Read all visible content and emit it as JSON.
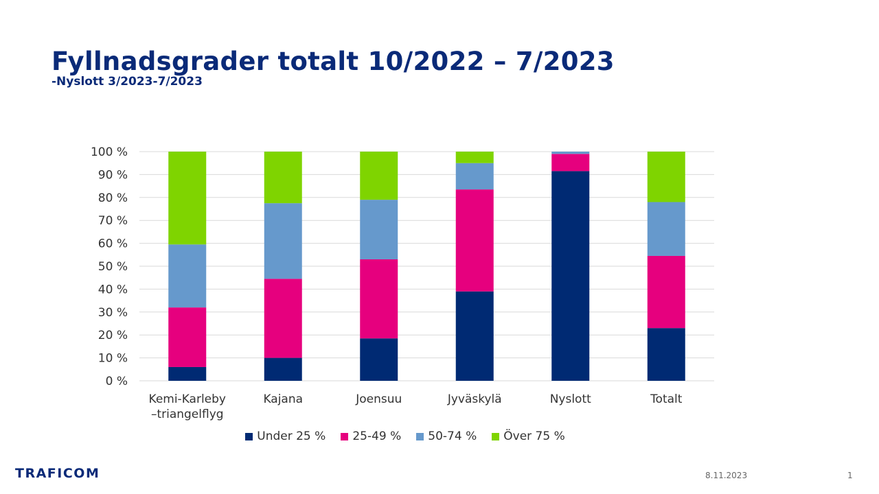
{
  "slide": {
    "title": "Fyllnadsgrader totalt 10/2022 – 7/2023",
    "subtitle": "-Nyslott 3/2023-7/2023",
    "logo": "TRAFICOM",
    "date": "8.11.2023",
    "page": "1"
  },
  "chart_data": {
    "type": "bar",
    "stacked": true,
    "percent": true,
    "categories": [
      "Kemi-Karleby\n–triangelflyg",
      "Kajana",
      "Joensuu",
      "Jyväskylä",
      "Nyslott",
      "Totalt"
    ],
    "series": [
      {
        "name": "Under 25 %",
        "color": "#002a73",
        "values": [
          6,
          10,
          18.5,
          39,
          91.5,
          23
        ]
      },
      {
        "name": "25-49 %",
        "color": "#e6007e",
        "values": [
          26,
          34.5,
          34.5,
          44.5,
          7.5,
          31.5
        ]
      },
      {
        "name": "50-74 %",
        "color": "#6699cc",
        "values": [
          27.5,
          33,
          26,
          11.5,
          1,
          23.5
        ]
      },
      {
        "name": "Över 75 %",
        "color": "#7fd400",
        "values": [
          40.5,
          22.5,
          21,
          5,
          0,
          22
        ]
      }
    ],
    "ylim": [
      0,
      100
    ],
    "yticks": [
      "0 %",
      "10 %",
      "20 %",
      "30 %",
      "40 %",
      "50 %",
      "60 %",
      "70 %",
      "80 %",
      "90 %",
      "100 %"
    ],
    "grid": true,
    "legend": "bottom"
  }
}
